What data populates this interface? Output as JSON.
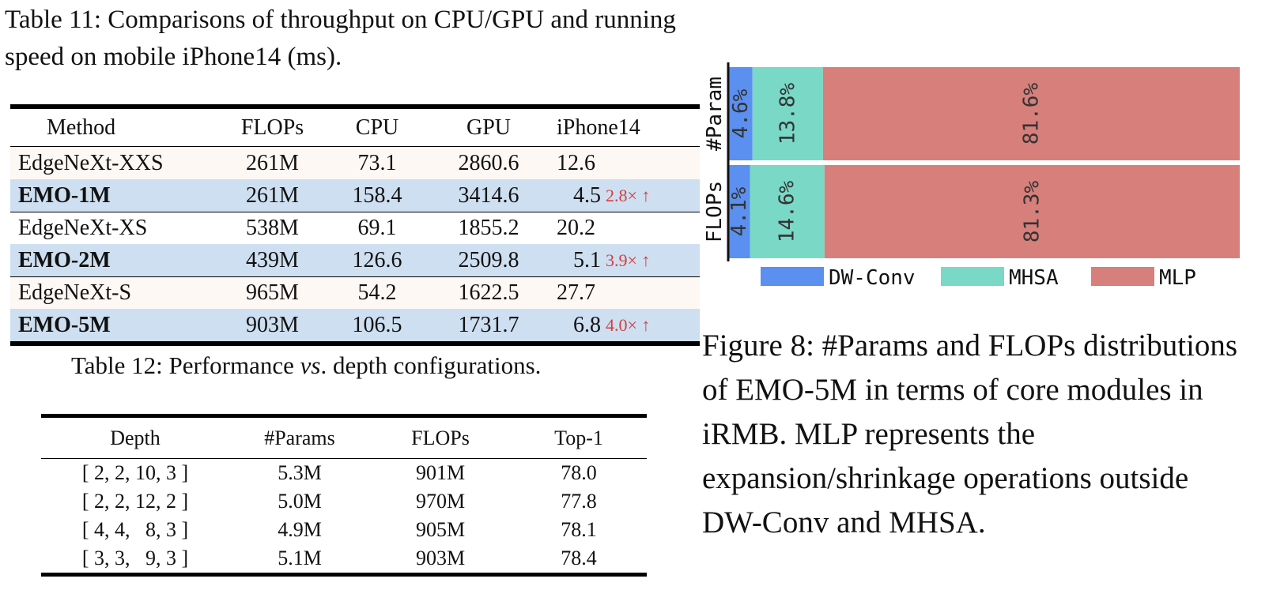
{
  "table11": {
    "caption": "Table 11: Comparisons of throughput on CPU/GPU and running speed on mobile iPhone14 (ms).",
    "headers": [
      "Method",
      "FLOPs",
      "CPU",
      "GPU",
      "iPhone14"
    ],
    "rows": [
      {
        "method": "EdgeNeXt-XXS",
        "flops": "261M",
        "cpu": "73.1",
        "gpu": "2860.6",
        "iphone": "12.6",
        "speedup": "",
        "style": "base"
      },
      {
        "method": "EMO-1M",
        "flops": "261M",
        "cpu": "158.4",
        "gpu": "3414.6",
        "iphone": "4.5",
        "speedup": "2.8× ↑",
        "style": "emo"
      },
      {
        "method": "EdgeNeXt-XS",
        "flops": "538M",
        "cpu": "69.1",
        "gpu": "1855.2",
        "iphone": "20.2",
        "speedup": "",
        "style": "plain"
      },
      {
        "method": "EMO-2M",
        "flops": "439M",
        "cpu": "126.6",
        "gpu": "2509.8",
        "iphone": "5.1",
        "speedup": "3.9× ↑",
        "style": "emo"
      },
      {
        "method": "EdgeNeXt-S",
        "flops": "965M",
        "cpu": "54.2",
        "gpu": "1622.5",
        "iphone": "27.7",
        "speedup": "",
        "style": "base"
      },
      {
        "method": "EMO-5M",
        "flops": "903M",
        "cpu": "106.5",
        "gpu": "1731.7",
        "iphone": "6.8",
        "speedup": "4.0× ↑",
        "style": "emo"
      }
    ]
  },
  "table12": {
    "caption_prefix": "Table 12: Performance ",
    "caption_italic": "vs",
    "caption_suffix": ". depth configurations.",
    "headers": [
      "Depth",
      "#Params",
      "FLOPs",
      "Top-1"
    ],
    "rows": [
      {
        "depth": "[ 2, 2, 10, 3 ]",
        "params": "5.3M",
        "flops": "901M",
        "top1": "78.0"
      },
      {
        "depth": "[ 2, 2, 12, 2 ]",
        "params": "5.0M",
        "flops": "970M",
        "top1": "77.8"
      },
      {
        "depth": "[ 4, 4,   8, 3 ]",
        "params": "4.9M",
        "flops": "905M",
        "top1": "78.1"
      },
      {
        "depth": "[ 3, 3,   9, 3 ]",
        "params": "5.1M",
        "flops": "903M",
        "top1": "78.4"
      }
    ]
  },
  "figure8": {
    "caption": "Figure 8: #Params and FLOPs distributions of EMO-5M in terms of core modules in iRMB. MLP represents the expansion/shrinkage operations outside DW-Conv and MHSA."
  },
  "chart_data": {
    "type": "bar",
    "orientation": "horizontal-stacked-100",
    "categories": [
      "#Param",
      "FLOPs"
    ],
    "series": [
      {
        "name": "DW-Conv",
        "values": [
          4.6,
          4.1
        ],
        "labels": [
          "4.6%",
          "4.1%"
        ],
        "color": "#5b8ff0"
      },
      {
        "name": "MHSA",
        "values": [
          13.8,
          14.6
        ],
        "labels": [
          "13.8%",
          "14.6%"
        ],
        "color": "#79d8c6"
      },
      {
        "name": "MLP",
        "values": [
          81.6,
          81.3
        ],
        "labels": [
          "81.6%",
          "81.3%"
        ],
        "color": "#d67f7b"
      }
    ],
    "xlim": [
      0,
      100
    ],
    "legend": "bottom",
    "grid": false
  }
}
